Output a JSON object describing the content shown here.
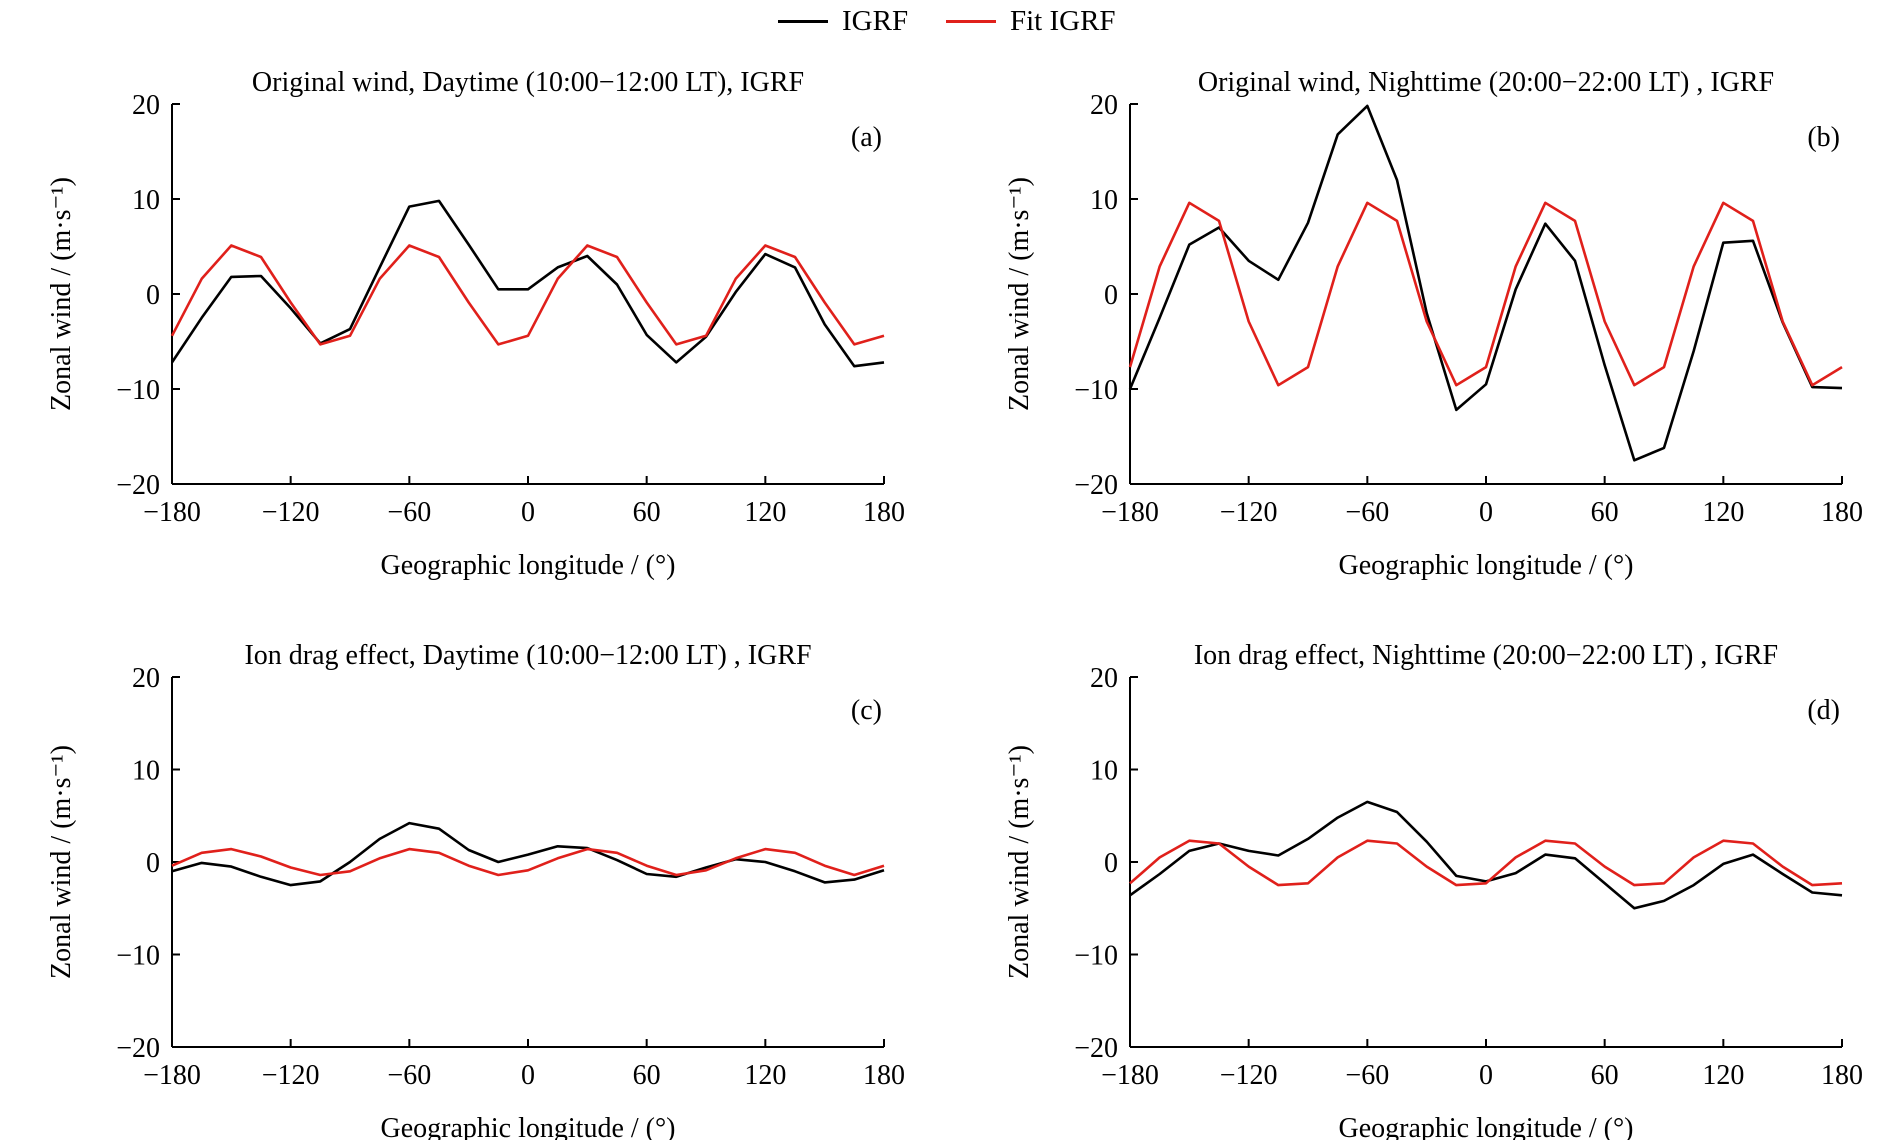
{
  "legend": {
    "items": [
      {
        "label": "IGRF",
        "color": "#000000"
      },
      {
        "label": "Fit IGRF",
        "color": "#e0201b"
      }
    ]
  },
  "chart_data": [
    {
      "type": "line",
      "title": "Original wind, Daytime (10:00−12:00 LT), IGRF",
      "panel_label": "(a)",
      "xlabel": "Geographic longitude / (°)",
      "ylabel": "Zonal wind / (m·s⁻¹)",
      "xlim": [
        -180,
        180
      ],
      "ylim": [
        -20,
        20
      ],
      "xticks": [
        -180,
        -120,
        -60,
        0,
        60,
        120,
        180
      ],
      "xtick_labels": [
        "−180",
        "−120",
        "−60",
        "0",
        "60",
        "120",
        "180"
      ],
      "yticks": [
        20,
        10,
        0,
        -10,
        -20
      ],
      "ytick_labels": [
        "20",
        "10",
        "0",
        "−10",
        "−20"
      ],
      "series": [
        {
          "name": "IGRF",
          "color": "#000000",
          "x": [
            -180,
            -165,
            -150,
            -135,
            -120,
            -105,
            -90,
            -75,
            -60,
            -45,
            -30,
            -15,
            0,
            15,
            30,
            45,
            60,
            75,
            90,
            105,
            120,
            135,
            150,
            165,
            180
          ],
          "y": [
            -7.2,
            -2.5,
            1.8,
            1.9,
            -1.5,
            -5.2,
            -3.7,
            2.8,
            9.2,
            9.8,
            5.2,
            0.5,
            0.5,
            2.8,
            4.0,
            1.0,
            -4.3,
            -7.2,
            -4.5,
            0.2,
            4.2,
            2.8,
            -3.2,
            -7.6,
            -7.2
          ]
        },
        {
          "name": "Fit IGRF",
          "color": "#e0201b",
          "x": [
            -180,
            -165,
            -150,
            -135,
            -120,
            -105,
            -90,
            -75,
            -60,
            -45,
            -30,
            -15,
            0,
            15,
            30,
            45,
            60,
            75,
            90,
            105,
            120,
            135,
            150,
            165,
            180
          ],
          "y": [
            -4.4,
            1.6,
            5.1,
            3.9,
            -0.9,
            -5.3,
            -4.4,
            1.6,
            5.1,
            3.9,
            -0.9,
            -5.3,
            -4.4,
            1.6,
            5.1,
            3.9,
            -0.9,
            -5.3,
            -4.4,
            1.6,
            5.1,
            3.9,
            -0.9,
            -5.3,
            -4.4
          ]
        }
      ]
    },
    {
      "type": "line",
      "title": "Original wind, Nighttime (20:00−22:00 LT) , IGRF",
      "panel_label": "(b)",
      "xlabel": "Geographic longitude / (°)",
      "ylabel": "Zonal wind / (m·s⁻¹)",
      "xlim": [
        -180,
        180
      ],
      "ylim": [
        -20,
        20
      ],
      "xticks": [
        -180,
        -120,
        -60,
        0,
        60,
        120,
        180
      ],
      "xtick_labels": [
        "−180",
        "−120",
        "−60",
        "0",
        "60",
        "120",
        "180"
      ],
      "yticks": [
        20,
        10,
        0,
        -10,
        -20
      ],
      "ytick_labels": [
        "20",
        "10",
        "0",
        "−10",
        "−20"
      ],
      "series": [
        {
          "name": "IGRF",
          "color": "#000000",
          "x": [
            -180,
            -165,
            -150,
            -135,
            -120,
            -105,
            -90,
            -75,
            -60,
            -45,
            -30,
            -15,
            0,
            15,
            30,
            45,
            60,
            75,
            90,
            105,
            120,
            135,
            150,
            165,
            180
          ],
          "y": [
            -10.0,
            -2.5,
            5.2,
            7.0,
            3.5,
            1.5,
            7.5,
            16.8,
            19.8,
            12.0,
            -2.0,
            -12.2,
            -9.5,
            0.5,
            7.4,
            3.5,
            -7.5,
            -17.5,
            -16.2,
            -6.0,
            5.4,
            5.6,
            -3.0,
            -9.8,
            -9.9
          ]
        },
        {
          "name": "Fit IGRF",
          "color": "#e0201b",
          "x": [
            -180,
            -165,
            -150,
            -135,
            -120,
            -105,
            -90,
            -75,
            -60,
            -45,
            -30,
            -15,
            0,
            15,
            30,
            45,
            60,
            75,
            90,
            105,
            120,
            135,
            150,
            165,
            180
          ],
          "y": [
            -7.7,
            2.9,
            9.6,
            7.7,
            -2.9,
            -9.6,
            -7.7,
            2.9,
            9.6,
            7.7,
            -2.9,
            -9.6,
            -7.7,
            2.9,
            9.6,
            7.7,
            -2.9,
            -9.6,
            -7.7,
            2.9,
            9.6,
            7.7,
            -2.9,
            -9.6,
            -7.7
          ]
        }
      ]
    },
    {
      "type": "line",
      "title": "Ion drag effect, Daytime (10:00−12:00 LT) , IGRF",
      "panel_label": "(c)",
      "xlabel": "Geographic longitude / (°)",
      "ylabel": "Zonal wind / (m·s⁻¹)",
      "xlim": [
        -180,
        180
      ],
      "ylim": [
        -20,
        20
      ],
      "xticks": [
        -180,
        -120,
        -60,
        0,
        60,
        120,
        180
      ],
      "xtick_labels": [
        "−180",
        "−120",
        "−60",
        "0",
        "60",
        "120",
        "180"
      ],
      "yticks": [
        20,
        10,
        0,
        -10,
        -20
      ],
      "ytick_labels": [
        "20",
        "10",
        "0",
        "−10",
        "−20"
      ],
      "series": [
        {
          "name": "IGRF",
          "color": "#000000",
          "x": [
            -180,
            -165,
            -150,
            -135,
            -120,
            -105,
            -90,
            -75,
            -60,
            -45,
            -30,
            -15,
            0,
            15,
            30,
            45,
            60,
            75,
            90,
            105,
            120,
            135,
            150,
            165,
            180
          ],
          "y": [
            -1.0,
            -0.1,
            -0.5,
            -1.6,
            -2.5,
            -2.1,
            0.0,
            2.5,
            4.2,
            3.6,
            1.3,
            0.0,
            0.8,
            1.7,
            1.5,
            0.2,
            -1.3,
            -1.6,
            -0.6,
            0.3,
            0.0,
            -1.0,
            -2.2,
            -1.9,
            -0.9
          ]
        },
        {
          "name": "Fit IGRF",
          "color": "#e0201b",
          "x": [
            -180,
            -165,
            -150,
            -135,
            -120,
            -105,
            -90,
            -75,
            -60,
            -45,
            -30,
            -15,
            0,
            15,
            30,
            45,
            60,
            75,
            90,
            105,
            120,
            135,
            150,
            165,
            180
          ],
          "y": [
            -0.4,
            1.0,
            1.4,
            0.6,
            -0.6,
            -1.4,
            -1.0,
            0.4,
            1.4,
            1.0,
            -0.4,
            -1.4,
            -0.9,
            0.4,
            1.4,
            1.0,
            -0.4,
            -1.4,
            -0.9,
            0.4,
            1.4,
            1.0,
            -0.4,
            -1.4,
            -0.4
          ]
        }
      ]
    },
    {
      "type": "line",
      "title": "Ion drag effect, Nighttime (20:00−22:00 LT) , IGRF",
      "panel_label": "(d)",
      "xlabel": "Geographic longitude / (°)",
      "ylabel": "Zonal wind / (m·s⁻¹)",
      "xlim": [
        -180,
        180
      ],
      "ylim": [
        -20,
        20
      ],
      "xticks": [
        -180,
        -120,
        -60,
        0,
        60,
        120,
        180
      ],
      "xtick_labels": [
        "−180",
        "−120",
        "−60",
        "0",
        "60",
        "120",
        "180"
      ],
      "yticks": [
        20,
        10,
        0,
        -10,
        -20
      ],
      "ytick_labels": [
        "20",
        "10",
        "0",
        "−10",
        "−20"
      ],
      "series": [
        {
          "name": "IGRF",
          "color": "#000000",
          "x": [
            -180,
            -165,
            -150,
            -135,
            -120,
            -105,
            -90,
            -75,
            -60,
            -45,
            -30,
            -15,
            0,
            15,
            30,
            45,
            60,
            75,
            90,
            105,
            120,
            135,
            150,
            165,
            180
          ],
          "y": [
            -3.6,
            -1.3,
            1.2,
            2.0,
            1.2,
            0.7,
            2.5,
            4.8,
            6.5,
            5.4,
            2.2,
            -1.5,
            -2.1,
            -1.2,
            0.8,
            0.4,
            -2.3,
            -5.0,
            -4.2,
            -2.5,
            -0.2,
            0.8,
            -1.3,
            -3.3,
            -3.6
          ]
        },
        {
          "name": "Fit IGRF",
          "color": "#e0201b",
          "x": [
            -180,
            -165,
            -150,
            -135,
            -120,
            -105,
            -90,
            -75,
            -60,
            -45,
            -30,
            -15,
            0,
            15,
            30,
            45,
            60,
            75,
            90,
            105,
            120,
            135,
            150,
            165,
            180
          ],
          "y": [
            -2.3,
            0.5,
            2.3,
            2.0,
            -0.5,
            -2.5,
            -2.3,
            0.5,
            2.3,
            2.0,
            -0.5,
            -2.5,
            -2.3,
            0.5,
            2.3,
            2.0,
            -0.5,
            -2.5,
            -2.3,
            0.5,
            2.3,
            2.0,
            -0.5,
            -2.5,
            -2.3
          ]
        }
      ]
    }
  ]
}
